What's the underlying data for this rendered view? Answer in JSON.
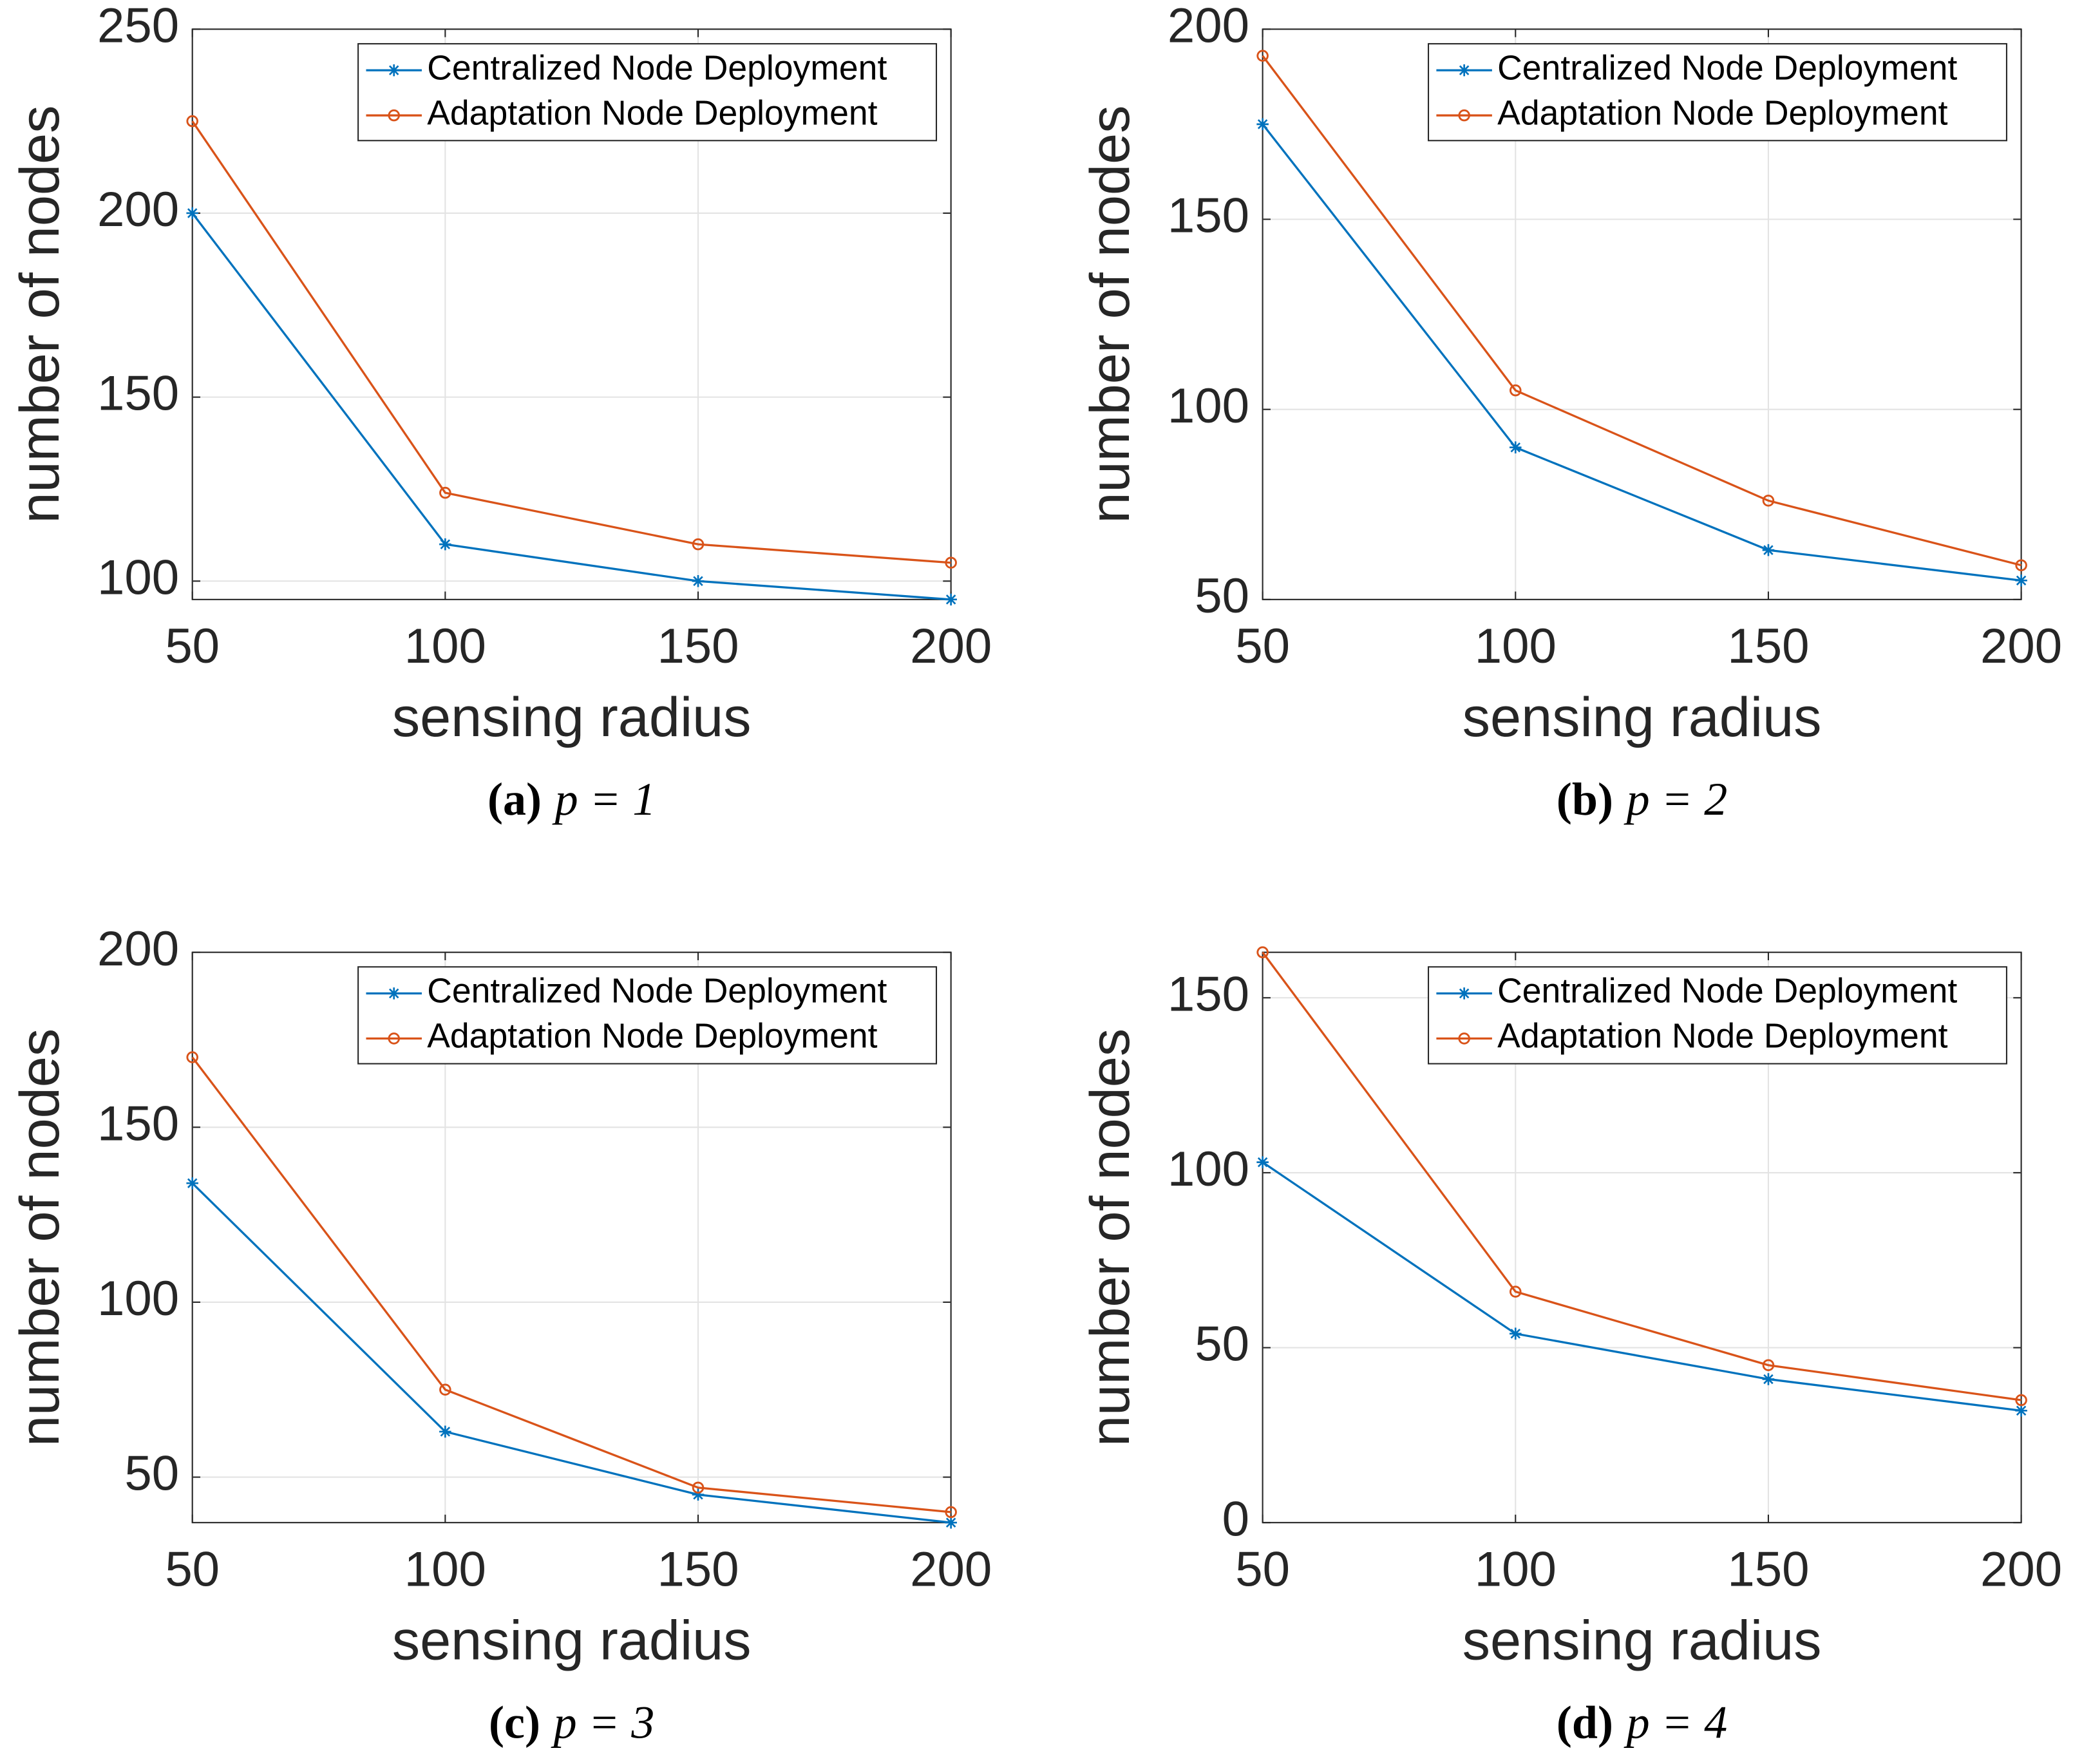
{
  "chart_data": [
    {
      "type": "line",
      "caption": {
        "label": "(a)",
        "text": "p = 1"
      },
      "xlabel": "sensing radius",
      "ylabel": "number of nodes",
      "x": [
        50,
        100,
        150,
        200
      ],
      "xlim": [
        50,
        200
      ],
      "xticks": [
        50,
        100,
        150,
        200
      ],
      "ylim": [
        95,
        250
      ],
      "yticks": [
        100,
        150,
        200,
        250
      ],
      "grid": true,
      "legend": "upper right",
      "series": [
        {
          "name": "Centralized Node Deployment",
          "color": "#0072bd",
          "marker": "*",
          "values": [
            200,
            110,
            100,
            95
          ]
        },
        {
          "name": "Adaptation Node Deployment",
          "color": "#d95319",
          "marker": "o",
          "values": [
            225,
            124,
            110,
            105
          ]
        }
      ]
    },
    {
      "type": "line",
      "caption": {
        "label": "(b)",
        "text": "p = 2"
      },
      "xlabel": "sensing radius",
      "ylabel": "number of nodes",
      "x": [
        50,
        100,
        150,
        200
      ],
      "xlim": [
        50,
        200
      ],
      "xticks": [
        50,
        100,
        150,
        200
      ],
      "ylim": [
        50,
        200
      ],
      "yticks": [
        50,
        100,
        150,
        200
      ],
      "grid": true,
      "legend": "upper right",
      "series": [
        {
          "name": "Centralized Node Deployment",
          "color": "#0072bd",
          "marker": "*",
          "values": [
            175,
            90,
            63,
            55
          ]
        },
        {
          "name": "Adaptation Node Deployment",
          "color": "#d95319",
          "marker": "o",
          "values": [
            193,
            105,
            76,
            59
          ]
        }
      ]
    },
    {
      "type": "line",
      "caption": {
        "label": "(c)",
        "text": "p = 3"
      },
      "xlabel": "sensing radius",
      "ylabel": "number of nodes",
      "x": [
        50,
        100,
        150,
        200
      ],
      "xlim": [
        50,
        200
      ],
      "xticks": [
        50,
        100,
        150,
        200
      ],
      "ylim": [
        37,
        200
      ],
      "yticks": [
        50,
        100,
        150,
        200
      ],
      "grid": true,
      "legend": "upper right",
      "series": [
        {
          "name": "Centralized Node Deployment",
          "color": "#0072bd",
          "marker": "*",
          "values": [
            134,
            63,
            45,
            37
          ]
        },
        {
          "name": "Adaptation Node Deployment",
          "color": "#d95319",
          "marker": "o",
          "values": [
            170,
            75,
            47,
            40
          ]
        }
      ]
    },
    {
      "type": "line",
      "caption": {
        "label": "(d)",
        "text": "p = 4"
      },
      "xlabel": "sensing radius",
      "ylabel": "number of nodes",
      "x": [
        50,
        100,
        150,
        200
      ],
      "xlim": [
        50,
        200
      ],
      "xticks": [
        50,
        100,
        150,
        200
      ],
      "ylim": [
        0,
        163
      ],
      "yticks": [
        0,
        50,
        100,
        150
      ],
      "grid": true,
      "legend": "upper right",
      "series": [
        {
          "name": "Centralized Node Deployment",
          "color": "#0072bd",
          "marker": "*",
          "values": [
            103,
            54,
            41,
            32
          ]
        },
        {
          "name": "Adaptation Node Deployment",
          "color": "#d95319",
          "marker": "o",
          "values": [
            163,
            66,
            45,
            35
          ]
        }
      ]
    }
  ]
}
